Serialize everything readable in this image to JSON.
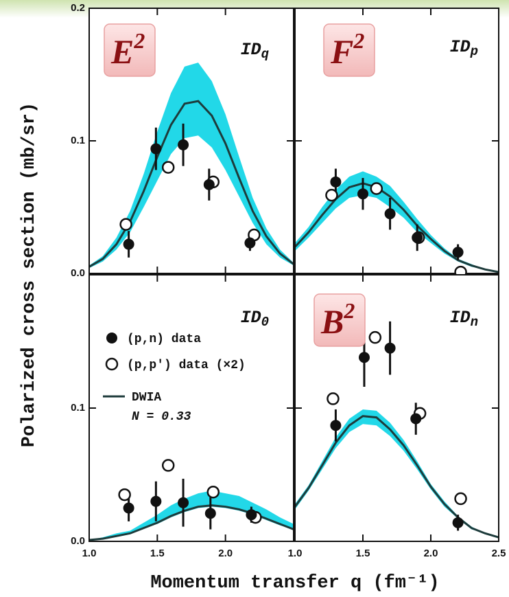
{
  "axes": {
    "ylabel": "Polarized cross section (mb/sr)",
    "xlabel": "Momentum transfer q (fm⁻¹)"
  },
  "chart_data": [
    {
      "type": "line",
      "panel_label": {
        "main": "E",
        "sup": "2"
      },
      "id_label": {
        "main": "ID",
        "sub": "q"
      },
      "xlim": [
        1.0,
        2.5
      ],
      "ylim": [
        0,
        0.2
      ],
      "xticks": [
        1,
        1.5,
        2,
        2.5
      ],
      "xtick_labels": false,
      "yticks": [
        {
          "value": 0,
          "label": "0.0"
        },
        0.1,
        0.2
      ],
      "ytick_labels": true,
      "x": [
        1.0,
        1.1,
        1.2,
        1.3,
        1.4,
        1.5,
        1.6,
        1.7,
        1.8,
        1.9,
        2.0,
        2.1,
        2.2,
        2.3,
        2.4,
        2.5
      ],
      "curve": {
        "color": "#1d3b3b",
        "values": [
          0.005,
          0.011,
          0.022,
          0.039,
          0.062,
          0.088,
          0.112,
          0.128,
          0.13,
          0.119,
          0.098,
          0.072,
          0.047,
          0.028,
          0.015,
          0.007
        ]
      },
      "band": {
        "color": "#22d8e8",
        "upper": [
          0.006,
          0.013,
          0.027,
          0.047,
          0.075,
          0.107,
          0.136,
          0.156,
          0.159,
          0.145,
          0.12,
          0.088,
          0.057,
          0.034,
          0.018,
          0.008
        ],
        "lower": [
          0.004,
          0.009,
          0.018,
          0.031,
          0.05,
          0.07,
          0.09,
          0.102,
          0.104,
          0.095,
          0.078,
          0.058,
          0.038,
          0.022,
          0.012,
          0.006
        ]
      },
      "filled": {
        "x": [
          1.29,
          1.49,
          1.69,
          1.88,
          2.18
        ],
        "values": [
          0.022,
          0.094,
          0.097,
          0.067,
          0.023
        ],
        "errors": [
          0.01,
          0.016,
          0.016,
          0.012,
          0.006
        ]
      },
      "open": {
        "x": [
          1.27,
          1.58,
          1.91,
          2.21
        ],
        "values": [
          0.037,
          0.08,
          0.069,
          0.029
        ]
      }
    },
    {
      "type": "line",
      "panel_label": {
        "main": "F",
        "sup": "2"
      },
      "id_label": {
        "main": "ID",
        "sub": "p"
      },
      "xlim": [
        1.0,
        2.5
      ],
      "ylim": [
        0,
        0.2
      ],
      "xticks": [
        1,
        1.5,
        2,
        2.5
      ],
      "xtick_labels": false,
      "yticks": [
        0,
        0.1,
        0.2
      ],
      "ytick_labels": false,
      "x": [
        1.0,
        1.1,
        1.2,
        1.3,
        1.4,
        1.5,
        1.6,
        1.7,
        1.8,
        1.9,
        2.0,
        2.1,
        2.2,
        2.3,
        2.4,
        2.5
      ],
      "curve": {
        "color": "#1d3b3b",
        "values": [
          0.02,
          0.031,
          0.044,
          0.056,
          0.065,
          0.068,
          0.065,
          0.058,
          0.048,
          0.036,
          0.026,
          0.017,
          0.01,
          0.006,
          0.003,
          0.001
        ]
      },
      "band": {
        "color": "#22d8e8",
        "upper": [
          0.023,
          0.035,
          0.05,
          0.063,
          0.073,
          0.077,
          0.073,
          0.066,
          0.054,
          0.041,
          0.029,
          0.019,
          0.011,
          0.007,
          0.003,
          0.001
        ],
        "lower": [
          0.017,
          0.027,
          0.038,
          0.049,
          0.057,
          0.059,
          0.057,
          0.05,
          0.042,
          0.031,
          0.023,
          0.015,
          0.009,
          0.005,
          0.003,
          0.001
        ]
      },
      "filled": {
        "x": [
          1.3,
          1.5,
          1.7,
          1.9,
          2.2
        ],
        "values": [
          0.069,
          0.06,
          0.045,
          0.027,
          0.016
        ],
        "errors": [
          0.01,
          0.012,
          0.012,
          0.01,
          0.006
        ]
      },
      "open": {
        "x": [
          1.27,
          1.6,
          1.91,
          2.22
        ],
        "values": [
          0.059,
          0.064,
          0.027,
          0.001
        ]
      }
    },
    {
      "type": "line",
      "id_label": {
        "main": "ID",
        "sub": "0"
      },
      "legend": [
        "(p,n) data",
        "(p,p′) data (×2)",
        "DWIA"
      ],
      "annotation": "N = 0.33",
      "xlim": [
        1.0,
        2.5
      ],
      "ylim": [
        0,
        0.2
      ],
      "xticks": [
        {
          "value": 1,
          "label": "1.0"
        },
        1.5,
        {
          "value": 2,
          "label": "2.0"
        }
      ],
      "xtick_labels": true,
      "yticks": [
        {
          "value": 0,
          "label": "0.0"
        },
        0.1
      ],
      "ytick_labels": true,
      "x": [
        1.0,
        1.1,
        1.2,
        1.3,
        1.4,
        1.5,
        1.6,
        1.7,
        1.8,
        1.9,
        2.0,
        2.1,
        2.2,
        2.3,
        2.4,
        2.5
      ],
      "curve": {
        "color": "#1d3b3b",
        "values": [
          0.001,
          0.002,
          0.004,
          0.006,
          0.01,
          0.014,
          0.019,
          0.023,
          0.026,
          0.027,
          0.026,
          0.024,
          0.021,
          0.017,
          0.013,
          0.009
        ]
      },
      "band": {
        "color": "#22d8e8",
        "upper": [
          0.001,
          0.003,
          0.006,
          0.008,
          0.014,
          0.02,
          0.027,
          0.032,
          0.036,
          0.038,
          0.036,
          0.034,
          0.029,
          0.024,
          0.018,
          0.013
        ],
        "lower": [
          0.001,
          0.002,
          0.004,
          0.006,
          0.01,
          0.013,
          0.018,
          0.022,
          0.025,
          0.026,
          0.025,
          0.023,
          0.02,
          0.016,
          0.012,
          0.009
        ]
      },
      "filled": {
        "x": [
          1.29,
          1.49,
          1.69,
          1.89,
          2.19
        ],
        "values": [
          0.025,
          0.03,
          0.029,
          0.021,
          0.02
        ],
        "errors": [
          0.01,
          0.015,
          0.018,
          0.012,
          0.006
        ]
      },
      "open": {
        "x": [
          1.26,
          1.58,
          1.91,
          2.22
        ],
        "values": [
          0.035,
          0.057,
          0.037,
          0.018
        ]
      }
    },
    {
      "type": "line",
      "panel_label": {
        "main": "B",
        "sup": "2"
      },
      "id_label": {
        "main": "ID",
        "sub": "n"
      },
      "xlim": [
        1.0,
        2.5
      ],
      "ylim": [
        0,
        0.2
      ],
      "xticks": [
        {
          "value": 1,
          "label": "1.0"
        },
        1.5,
        {
          "value": 2,
          "label": "2.0"
        },
        2.5
      ],
      "xtick_labels": true,
      "yticks": [
        0,
        0.1
      ],
      "ytick_labels": false,
      "x": [
        1.0,
        1.1,
        1.2,
        1.3,
        1.4,
        1.5,
        1.6,
        1.7,
        1.8,
        1.9,
        2.0,
        2.1,
        2.2,
        2.3,
        2.4,
        2.5
      ],
      "curve": {
        "color": "#1d3b3b",
        "values": [
          0.026,
          0.04,
          0.057,
          0.074,
          0.087,
          0.094,
          0.093,
          0.084,
          0.072,
          0.057,
          0.041,
          0.028,
          0.018,
          0.01,
          0.006,
          0.003
        ]
      },
      "band": {
        "color": "#22d8e8",
        "upper": [
          0.028,
          0.042,
          0.06,
          0.078,
          0.092,
          0.099,
          0.098,
          0.089,
          0.076,
          0.06,
          0.043,
          0.03,
          0.019,
          0.011,
          0.006,
          0.003
        ],
        "lower": [
          0.024,
          0.038,
          0.054,
          0.07,
          0.082,
          0.088,
          0.087,
          0.079,
          0.068,
          0.054,
          0.039,
          0.026,
          0.017,
          0.009,
          0.006,
          0.003
        ]
      },
      "filled": {
        "x": [
          1.3,
          1.51,
          1.7,
          1.89,
          2.2
        ],
        "values": [
          0.087,
          0.138,
          0.145,
          0.092,
          0.014
        ],
        "errors": [
          0.012,
          0.022,
          0.02,
          0.012,
          0.006
        ]
      },
      "open": {
        "x": [
          1.28,
          1.59,
          1.92,
          2.22
        ],
        "values": [
          0.107,
          0.153,
          0.096,
          0.032
        ]
      }
    }
  ]
}
